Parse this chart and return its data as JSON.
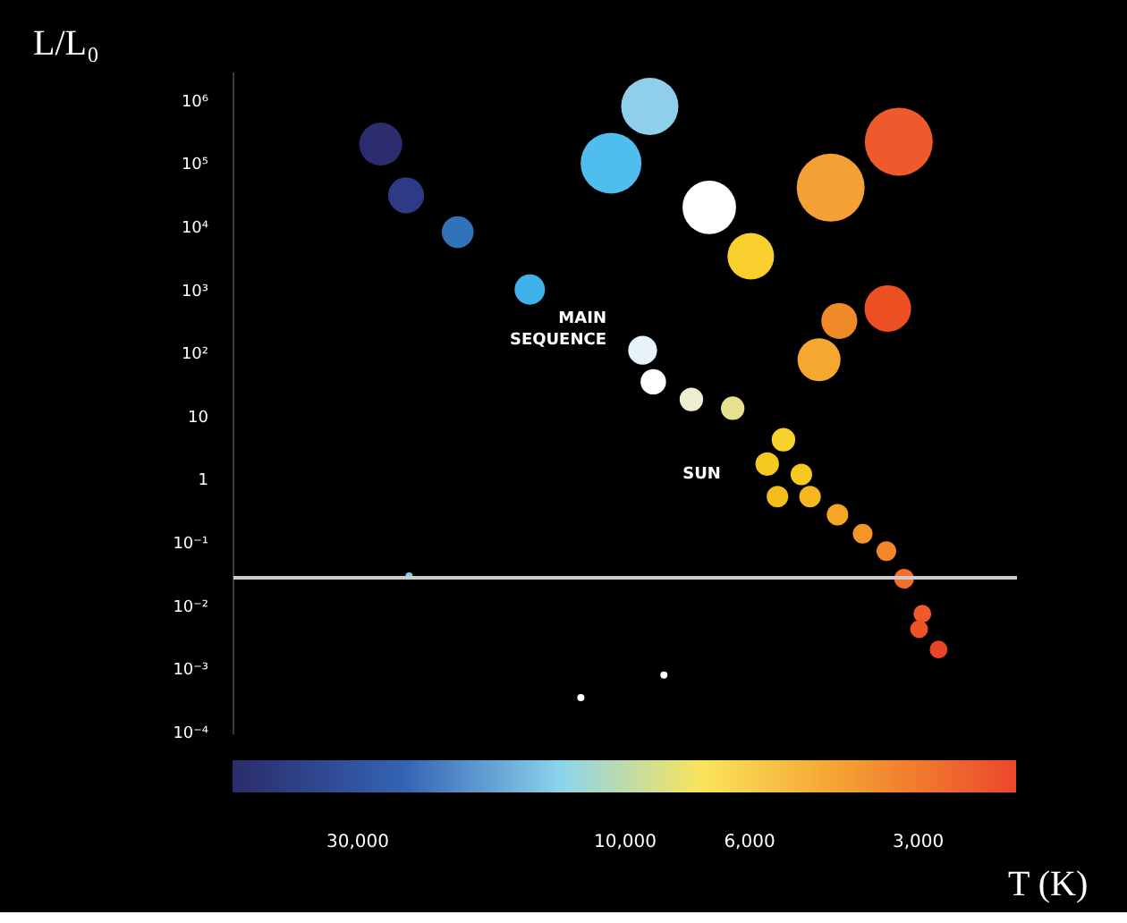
{
  "chart_data": {
    "type": "bubble",
    "xlabel": "T (K)",
    "ylabel": "L/L₀",
    "log": "xy",
    "marker": "circle",
    "xlim": [
      50000,
      2000
    ],
    "ylim": [
      0.0001,
      3000000
    ],
    "xticks": [
      {
        "value": 30000,
        "label": "30,000"
      },
      {
        "value": 10000,
        "label": "10,000"
      },
      {
        "value": 6000,
        "label": "6,000"
      },
      {
        "value": 3000,
        "label": "3,000"
      }
    ],
    "yticks": [
      {
        "value": 1000000,
        "label": "10⁶"
      },
      {
        "value": 100000,
        "label": "10⁵"
      },
      {
        "value": 10000,
        "label": "10⁴"
      },
      {
        "value": 1000,
        "label": "10³"
      },
      {
        "value": 100,
        "label": "10²"
      },
      10,
      1,
      {
        "value": 0.1,
        "label": "10⁻¹"
      },
      {
        "value": 0.01,
        "label": "10⁻²"
      },
      {
        "value": 0.001,
        "label": "10⁻³"
      },
      {
        "value": 0.0001,
        "label": "10⁻⁴"
      }
    ],
    "series": [
      {
        "x": [
          27300,
          24600,
          19900,
          14800,
          9040,
          10600,
          7080,
          5970,
          4300,
          3250,
          4150,
          3400,
          4510,
          9310,
          8910,
          7620,
          6430,
          5220,
          5580,
          4850,
          5350,
          4680,
          4180,
          3770,
          3420,
          3180,
          2950,
          2990,
          2760,
          24300,
          8530,
          12000
        ],
        "values": [
          220000,
          34000,
          8900,
          1100,
          870000,
          110000,
          22000,
          3700,
          45000,
          240000,
          350,
          550,
          85,
          120,
          38,
          20,
          14.5,
          4.6,
          1.9,
          1.3,
          0.58,
          0.58,
          0.3,
          0.15,
          0.079,
          0.029,
          0.0081,
          0.0046,
          0.0022,
          0.032,
          0.00087,
          0.00038
        ],
        "sizes": [
          0.4,
          0.28,
          0.22,
          0.2,
          0.71,
          0.8,
          0.62,
          0.47,
          1,
          1,
          0.28,
          0.47,
          0.4,
          0.18,
          0.14,
          0.12,
          0.12,
          0.12,
          0.12,
          0.1,
          0.1,
          0.1,
          0.1,
          0.084,
          0.084,
          0.084,
          0.069,
          0.069,
          0.069,
          0.011,
          0.011,
          0.011
        ],
        "colors": [
          "#2b2d6e",
          "#2e3a85",
          "#3173b8",
          "#3fb2ec",
          "#8fcfec",
          "#4fbdee",
          "#ffffff",
          "#f9cf2e",
          "#f5a034",
          "#ee5a2c",
          "#f08a28",
          "#ec4f22",
          "#f5a830",
          "#e6f3fb",
          "#ffffff",
          "#eeeed0",
          "#e8e090",
          "#f7d22a",
          "#f6c91e",
          "#f7c820",
          "#f5bc1e",
          "#f5b820",
          "#f6a624",
          "#f59528",
          "#f4862a",
          "#f26e2a",
          "#ef5a28",
          "#ee5227",
          "#e9432a",
          "#7fd0f0",
          "#ffffff",
          "#ffffff"
        ]
      }
    ],
    "ref_lines": [
      {
        "axis": "y",
        "value": 0.03,
        "color": "#cccccc"
      }
    ],
    "annotations": [
      "MAIN\nSEQUENCE",
      "SUN"
    ],
    "grid": false
  }
}
